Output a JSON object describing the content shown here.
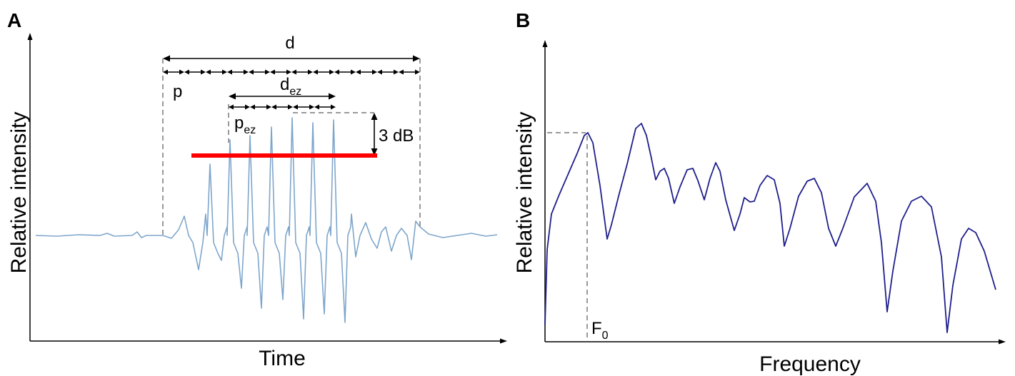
{
  "panels": [
    {
      "label": "A",
      "xlabel": "Time",
      "ylabel": "Relative intensity",
      "annotations": {
        "d": "d",
        "p": "p",
        "d_ez": {
          "base": "d",
          "sub": "ez"
        },
        "p_ez": {
          "base": "p",
          "sub": "ez"
        },
        "threshold": "3 dB"
      },
      "colors": {
        "waveform": "#7ea6cc",
        "threshold_bar": "#ff0000"
      }
    },
    {
      "label": "B",
      "xlabel": "Frequency",
      "ylabel": "Relative intensity",
      "annotations": {
        "f0": {
          "base": "F",
          "sub": "0"
        }
      },
      "colors": {
        "spectrum": "#1f1f8c"
      }
    }
  ]
}
